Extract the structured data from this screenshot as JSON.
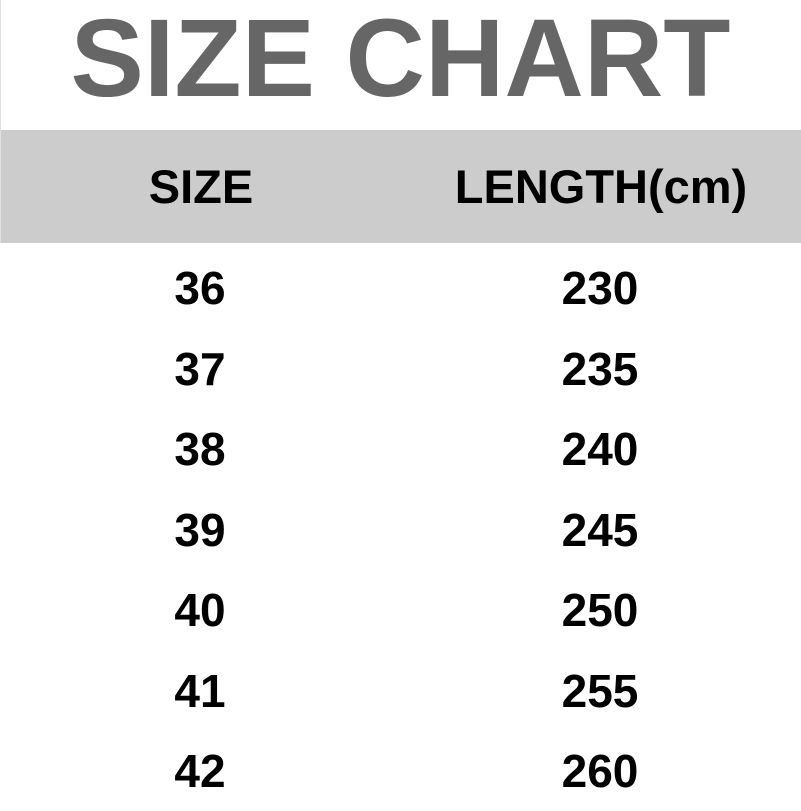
{
  "title": "SIZE CHART",
  "colors": {
    "title": "#666666",
    "header_bg": "#cccccc",
    "text": "#000000"
  },
  "table": {
    "headers": [
      "SIZE",
      "LENGTH(cm)"
    ],
    "rows": [
      [
        "36",
        "230"
      ],
      [
        "37",
        "235"
      ],
      [
        "38",
        "240"
      ],
      [
        "39",
        "245"
      ],
      [
        "40",
        "250"
      ],
      [
        "41",
        "255"
      ],
      [
        "42",
        "260"
      ]
    ]
  }
}
